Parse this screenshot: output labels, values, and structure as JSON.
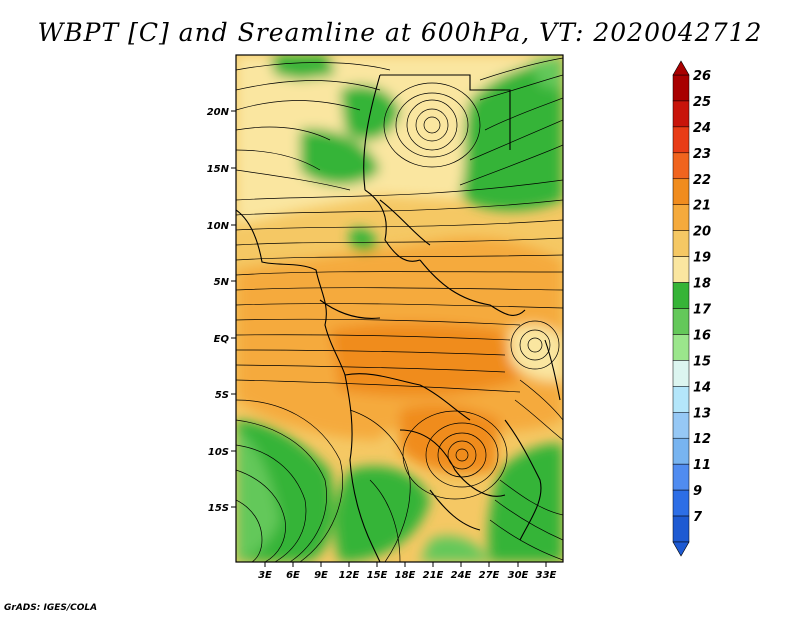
{
  "title": "WBPT [C] and Sreamline at 600hPa, VT: 2020042712",
  "credit": "GrADS: IGES/COLA",
  "map": {
    "lat_ticks": [
      "20N",
      "15N",
      "10N",
      "5N",
      "EQ",
      "5S",
      "10S",
      "15S"
    ],
    "lon_ticks": [
      "3E",
      "6E",
      "9E",
      "12E",
      "15E",
      "18E",
      "21E",
      "24E",
      "27E",
      "30E",
      "33E"
    ],
    "field": "WBPT",
    "units": "C",
    "level": "600hPa",
    "overlay": "streamlines"
  },
  "colorbar": {
    "levels": [
      "26",
      "25",
      "24",
      "23",
      "22",
      "21",
      "20",
      "19",
      "18",
      "17",
      "16",
      "15",
      "14",
      "13",
      "12",
      "11",
      "9",
      "7"
    ],
    "colors": [
      "#a80000",
      "#c8140a",
      "#e83c16",
      "#f0641e",
      "#f08c1e",
      "#f5aa3c",
      "#f5c864",
      "#fae6a0",
      "#36b437",
      "#64c85a",
      "#9be68c",
      "#dcf5f0",
      "#b4e6fa",
      "#96c8f5",
      "#78b4f0",
      "#508cf0",
      "#2d6ee6",
      "#1e5ad2"
    ]
  }
}
